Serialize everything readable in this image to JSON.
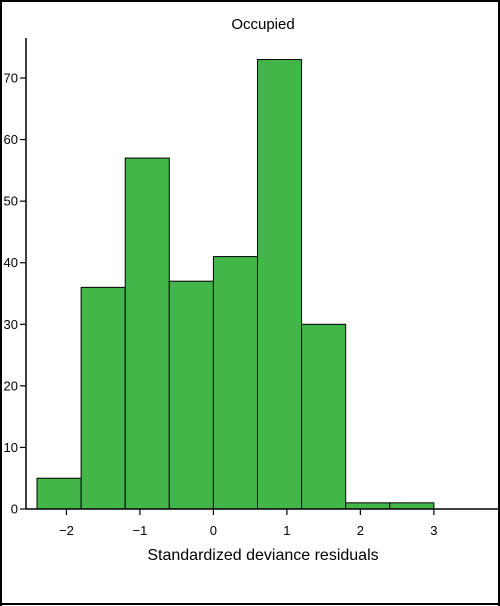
{
  "chart_data": {
    "type": "bar",
    "title": "Occupied",
    "xlabel": "Standardized deviance residuals",
    "ylabel": "",
    "bins": [
      {
        "x0": -2.4,
        "x1": -1.8,
        "count": 5
      },
      {
        "x0": -1.8,
        "x1": -1.2,
        "count": 36
      },
      {
        "x0": -1.2,
        "x1": -0.6,
        "count": 57
      },
      {
        "x0": -0.6,
        "x1": 0.0,
        "count": 37
      },
      {
        "x0": 0.0,
        "x1": 0.6,
        "count": 41
      },
      {
        "x0": 0.6,
        "x1": 1.2,
        "count": 73
      },
      {
        "x0": 1.2,
        "x1": 1.8,
        "count": 30
      },
      {
        "x0": 1.8,
        "x1": 2.4,
        "count": 1
      },
      {
        "x0": 2.4,
        "x1": 3.0,
        "count": 1
      }
    ],
    "xticks": [
      "−2",
      "−1",
      "0",
      "1",
      "2",
      "3"
    ],
    "xtick_values": [
      -2,
      -1,
      0,
      1,
      2,
      3
    ],
    "yticks": [
      "0",
      "10",
      "20",
      "30",
      "40",
      "50",
      "60",
      "70"
    ],
    "ytick_values": [
      0,
      10,
      20,
      30,
      40,
      50,
      60,
      70
    ],
    "xlim": [
      -2.55,
      3.9
    ],
    "ylim": [
      0,
      76.5
    ],
    "grid": false,
    "bar_color": "#43b649",
    "edge_color": "#000000"
  }
}
